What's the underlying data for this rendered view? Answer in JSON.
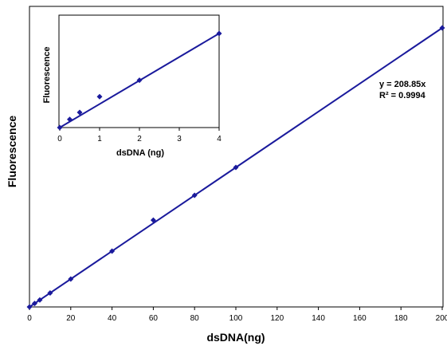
{
  "chart_data": [
    {
      "type": "scatter",
      "xlabel": "dsDNA(ng)",
      "ylabel": "Fluorescence",
      "xlim": [
        0,
        200
      ],
      "x_ticks": [
        "0",
        "20",
        "40",
        "60",
        "80",
        "100",
        "120",
        "140",
        "160",
        "180",
        "200"
      ],
      "grid": false,
      "series": [
        {
          "color": "#1a1a9c",
          "points": [
            {
              "x": 0,
              "y": 0
            },
            {
              "x": 2.5,
              "y": 522
            },
            {
              "x": 5,
              "y": 1044
            },
            {
              "x": 10,
              "y": 2088
            },
            {
              "x": 20,
              "y": 4177
            },
            {
              "x": 40,
              "y": 8354
            },
            {
              "x": 60,
              "y": 13000
            },
            {
              "x": 80,
              "y": 16708
            },
            {
              "x": 100,
              "y": 20885
            },
            {
              "x": 200,
              "y": 41770
            }
          ]
        }
      ],
      "trendline": {
        "slope": 208.85,
        "equation": "y = 208.85x",
        "r_squared": "R² = 0.9994",
        "color": "#1a1a9c"
      }
    },
    {
      "type": "scatter",
      "xlabel": "dsDNA (ng)",
      "ylabel": "Fluorescence",
      "xlim": [
        0,
        4
      ],
      "x_ticks": [
        "0",
        "1",
        "2",
        "3",
        "4"
      ],
      "grid": false,
      "series": [
        {
          "color": "#1a1a9c",
          "points": [
            {
              "x": 0,
              "y": 0
            },
            {
              "x": 0.25,
              "y": 61
            },
            {
              "x": 0.5,
              "y": 113
            },
            {
              "x": 1,
              "y": 230
            },
            {
              "x": 2,
              "y": 352
            },
            {
              "x": 4,
              "y": 700
            }
          ]
        }
      ],
      "trendline": {
        "slope": 175,
        "color": "#1a1a9c"
      }
    }
  ]
}
